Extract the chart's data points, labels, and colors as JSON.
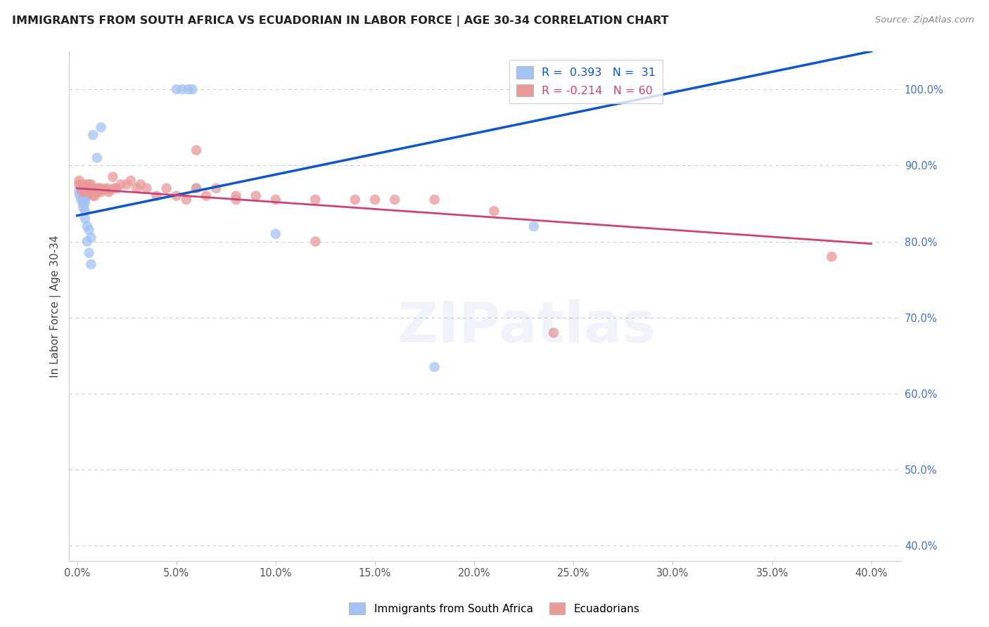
{
  "title": "IMMIGRANTS FROM SOUTH AFRICA VS ECUADORIAN IN LABOR FORCE | AGE 30-34 CORRELATION CHART",
  "source": "Source: ZipAtlas.com",
  "ylabel": "In Labor Force | Age 30-34",
  "blue_R": 0.393,
  "blue_N": 31,
  "pink_R": -0.214,
  "pink_N": 60,
  "blue_color": "#a4c2f4",
  "pink_color": "#ea9999",
  "blue_line_color": "#1155cc",
  "pink_line_color": "#cc4477",
  "legend_label_blue": "Immigrants from South Africa",
  "legend_label_pink": "Ecuadorians",
  "title_color": "#222222",
  "right_axis_color": "#4472c4",
  "grid_color": "#cccccc",
  "xlim": [
    -0.004,
    0.415
  ],
  "ylim": [
    0.38,
    1.05
  ],
  "x_ticks": [
    0.0,
    0.05,
    0.1,
    0.15,
    0.2,
    0.25,
    0.3,
    0.35,
    0.4
  ],
  "y_ticks_right": [
    0.4,
    0.5,
    0.6,
    0.7,
    0.8,
    0.9,
    1.0
  ],
  "blue_x": [
    0.001,
    0.001,
    0.002,
    0.002,
    0.002,
    0.003,
    0.003,
    0.003,
    0.003,
    0.004,
    0.004,
    0.004,
    0.004,
    0.005,
    0.005,
    0.005,
    0.006,
    0.006,
    0.007,
    0.007,
    0.008,
    0.01,
    0.012,
    0.05,
    0.053,
    0.056,
    0.058,
    0.06,
    0.1,
    0.18,
    0.23
  ],
  "blue_y": [
    0.862,
    0.868,
    0.855,
    0.86,
    0.865,
    0.845,
    0.85,
    0.855,
    0.86,
    0.83,
    0.84,
    0.85,
    0.855,
    0.8,
    0.82,
    0.86,
    0.785,
    0.815,
    0.77,
    0.805,
    0.94,
    0.91,
    0.95,
    1.0,
    1.0,
    1.0,
    1.0,
    0.87,
    0.81,
    0.635,
    0.82
  ],
  "pink_x": [
    0.001,
    0.001,
    0.002,
    0.002,
    0.003,
    0.003,
    0.003,
    0.004,
    0.004,
    0.005,
    0.005,
    0.005,
    0.006,
    0.006,
    0.007,
    0.007,
    0.008,
    0.008,
    0.009,
    0.009,
    0.01,
    0.01,
    0.011,
    0.012,
    0.012,
    0.013,
    0.014,
    0.015,
    0.016,
    0.017,
    0.018,
    0.019,
    0.02,
    0.022,
    0.025,
    0.027,
    0.03,
    0.032,
    0.035,
    0.04,
    0.045,
    0.05,
    0.055,
    0.06,
    0.065,
    0.07,
    0.08,
    0.09,
    0.1,
    0.12,
    0.14,
    0.16,
    0.18,
    0.21,
    0.06,
    0.08,
    0.12,
    0.15,
    0.24,
    0.38
  ],
  "pink_y": [
    0.875,
    0.88,
    0.875,
    0.87,
    0.865,
    0.87,
    0.875,
    0.865,
    0.87,
    0.875,
    0.87,
    0.868,
    0.875,
    0.868,
    0.87,
    0.875,
    0.86,
    0.865,
    0.86,
    0.865,
    0.87,
    0.865,
    0.87,
    0.865,
    0.87,
    0.868,
    0.868,
    0.87,
    0.865,
    0.868,
    0.885,
    0.87,
    0.87,
    0.875,
    0.875,
    0.88,
    0.87,
    0.875,
    0.87,
    0.86,
    0.87,
    0.86,
    0.855,
    0.87,
    0.86,
    0.87,
    0.86,
    0.86,
    0.855,
    0.855,
    0.855,
    0.855,
    0.855,
    0.84,
    0.92,
    0.855,
    0.8,
    0.855,
    0.68,
    0.78
  ],
  "blue_line_x0": 0.0,
  "blue_line_x1": 0.4,
  "blue_line_y0": 0.834,
  "blue_line_y1": 1.05,
  "pink_line_x0": 0.0,
  "pink_line_x1": 0.4,
  "pink_line_y0": 0.87,
  "pink_line_y1": 0.797
}
